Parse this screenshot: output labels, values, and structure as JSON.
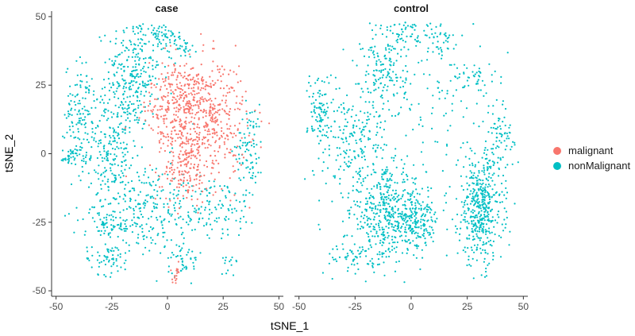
{
  "chart_data": {
    "type": "scatter",
    "xlabel": "tSNE_1",
    "ylabel": "tSNE_2",
    "xlim": [
      -52,
      52
    ],
    "ylim": [
      -52,
      52
    ],
    "x_ticks": [
      -50,
      -25,
      0,
      25,
      50
    ],
    "y_ticks": [
      50,
      25,
      0,
      -25,
      -50
    ],
    "grid": false,
    "legend_position": "right",
    "series": [
      {
        "name": "malignant",
        "color": "#F8766D"
      },
      {
        "name": "nonMalignant",
        "color": "#00BFC4"
      }
    ],
    "panels": [
      {
        "title": "case",
        "clusters": [
          {
            "series": "malignant",
            "cx": 14,
            "cy": 12,
            "sx": 11,
            "sy": 11,
            "n": 520
          },
          {
            "series": "malignant",
            "cx": 8,
            "cy": 22,
            "sx": 8,
            "sy": 6,
            "n": 180
          },
          {
            "series": "malignant",
            "cx": 8,
            "cy": -6,
            "sx": 5,
            "sy": 6,
            "n": 130
          },
          {
            "series": "malignant",
            "cx": 4,
            "cy": -44,
            "sx": 1.5,
            "sy": 3,
            "n": 18
          },
          {
            "series": "nonMalignant",
            "cx": -15,
            "cy": 30,
            "sx": 6,
            "sy": 11,
            "n": 260
          },
          {
            "series": "nonMalignant",
            "cx": -24,
            "cy": 2,
            "sx": 6,
            "sy": 12,
            "n": 240
          },
          {
            "series": "nonMalignant",
            "cx": -39,
            "cy": 15,
            "sx": 3.5,
            "sy": 9,
            "n": 130
          },
          {
            "series": "nonMalignant",
            "cx": -44,
            "cy": -1,
            "sx": 2.5,
            "sy": 1.5,
            "n": 45
          },
          {
            "series": "nonMalignant",
            "cx": -2,
            "cy": 42,
            "sx": 4,
            "sy": 3,
            "n": 50
          },
          {
            "series": "nonMalignant",
            "cx": 7,
            "cy": 39,
            "sx": 3,
            "sy": 2,
            "n": 30
          },
          {
            "series": "nonMalignant",
            "cx": -10,
            "cy": -20,
            "sx": 13,
            "sy": 9,
            "n": 230
          },
          {
            "series": "nonMalignant",
            "cx": 20,
            "cy": -20,
            "sx": 11,
            "sy": 6,
            "n": 110
          },
          {
            "series": "nonMalignant",
            "cx": 37,
            "cy": 2,
            "sx": 3,
            "sy": 8,
            "n": 90
          },
          {
            "series": "nonMalignant",
            "cx": -27,
            "cy": -38,
            "sx": 5,
            "sy": 3,
            "n": 60
          },
          {
            "series": "nonMalignant",
            "cx": 8,
            "cy": -38,
            "sx": 4,
            "sy": 4,
            "n": 45
          },
          {
            "series": "nonMalignant",
            "cx": 28,
            "cy": -39,
            "sx": 2,
            "sy": 2,
            "n": 14
          },
          {
            "series": "nonMalignant",
            "cx": -25,
            "cy": -26,
            "sx": 6,
            "sy": 2,
            "n": 60
          }
        ]
      },
      {
        "title": "control",
        "clusters": [
          {
            "series": "nonMalignant",
            "cx": 31,
            "cy": -20,
            "sx": 5,
            "sy": 10,
            "n": 450
          },
          {
            "series": "nonMalignant",
            "cx": -10,
            "cy": -22,
            "sx": 8,
            "sy": 8,
            "n": 400
          },
          {
            "series": "nonMalignant",
            "cx": 3,
            "cy": -25,
            "sx": 5,
            "sy": 5,
            "n": 160
          },
          {
            "series": "nonMalignant",
            "cx": -24,
            "cy": 2,
            "sx": 7,
            "sy": 12,
            "n": 220
          },
          {
            "series": "nonMalignant",
            "cx": -40,
            "cy": 15,
            "sx": 3,
            "sy": 8,
            "n": 110
          },
          {
            "series": "nonMalignant",
            "cx": -12,
            "cy": 30,
            "sx": 5,
            "sy": 9,
            "n": 150
          },
          {
            "series": "nonMalignant",
            "cx": -2,
            "cy": 44,
            "sx": 5,
            "sy": 3,
            "n": 60
          },
          {
            "series": "nonMalignant",
            "cx": 15,
            "cy": 18,
            "sx": 14,
            "sy": 14,
            "n": 100
          },
          {
            "series": "nonMalignant",
            "cx": 40,
            "cy": 5,
            "sx": 3,
            "sy": 6,
            "n": 70
          },
          {
            "series": "nonMalignant",
            "cx": -25,
            "cy": -38,
            "sx": 8,
            "sy": 3,
            "n": 70
          },
          {
            "series": "nonMalignant",
            "cx": 12,
            "cy": 42,
            "sx": 4,
            "sy": 3,
            "n": 40
          },
          {
            "series": "nonMalignant",
            "cx": 28,
            "cy": 28,
            "sx": 6,
            "sy": 3,
            "n": 40
          }
        ]
      }
    ]
  }
}
